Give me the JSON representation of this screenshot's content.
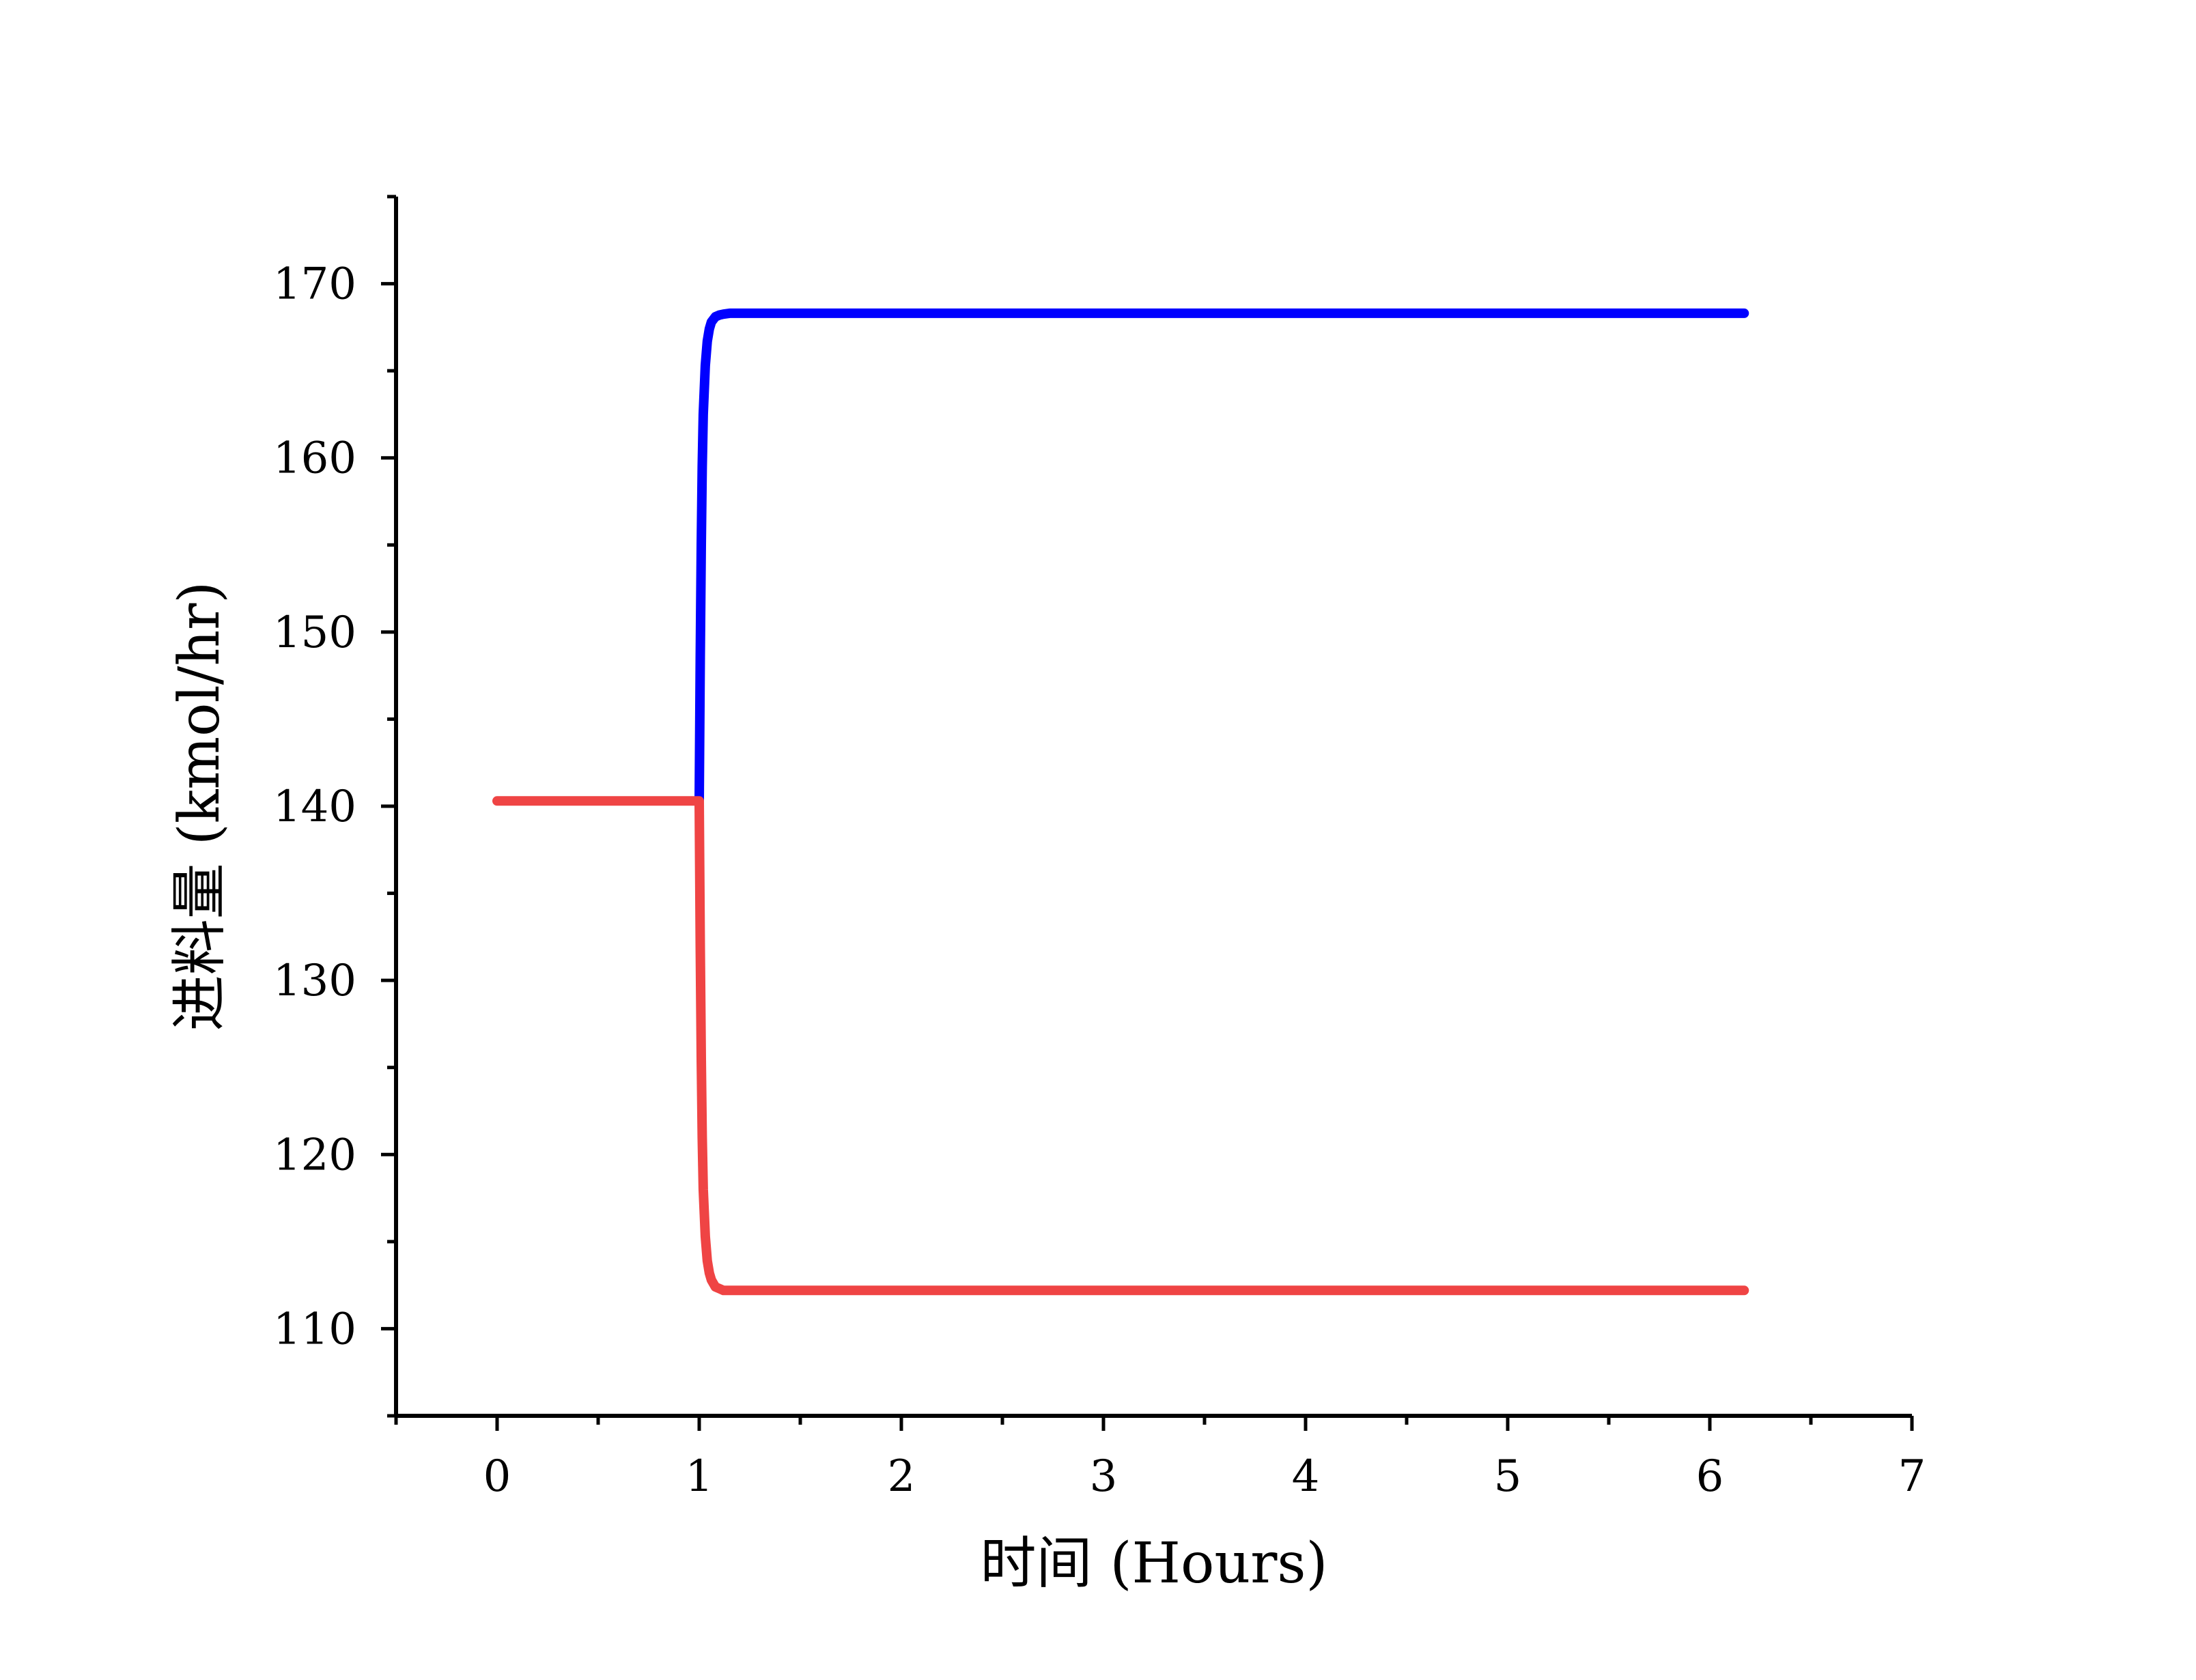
{
  "chart_data": {
    "type": "line",
    "xlabel": "时间 (Hours)",
    "ylabel": "进料量 (kmol/hr)",
    "xlim": [
      -0.5,
      7
    ],
    "ylim": [
      105,
      175
    ],
    "xticks": [
      0,
      1,
      2,
      3,
      4,
      5,
      6,
      7
    ],
    "yticks": [
      110,
      120,
      130,
      140,
      150,
      160,
      170
    ],
    "grid": false,
    "legend": "none",
    "series": [
      {
        "color": "#0000ff",
        "x": [
          1.0,
          1.005,
          1.01,
          1.015,
          1.02,
          1.03,
          1.04,
          1.05,
          1.06,
          1.08,
          1.1,
          1.12,
          1.15,
          1.2,
          1.5,
          2,
          3,
          4,
          5,
          6,
          6.17
        ],
        "y": [
          140.3,
          148.5,
          155.0,
          159.5,
          162.5,
          165.3,
          166.7,
          167.4,
          167.8,
          168.1,
          168.2,
          168.25,
          168.3,
          168.3,
          168.3,
          168.3,
          168.3,
          168.3,
          168.3,
          168.3,
          168.3
        ]
      },
      {
        "color": "#ef4444",
        "x": [
          0,
          0.5,
          1.0,
          1.005,
          1.01,
          1.015,
          1.02,
          1.03,
          1.04,
          1.05,
          1.06,
          1.08,
          1.1,
          1.12,
          1.15,
          1.2,
          1.5,
          2,
          3,
          4,
          5,
          6,
          6.17
        ],
        "y": [
          140.3,
          140.3,
          140.3,
          132.0,
          125.5,
          121.0,
          118.0,
          115.3,
          113.9,
          113.2,
          112.8,
          112.4,
          112.3,
          112.2,
          112.2,
          112.2,
          112.2,
          112.2,
          112.2,
          112.2,
          112.2,
          112.2,
          112.2
        ]
      }
    ]
  }
}
